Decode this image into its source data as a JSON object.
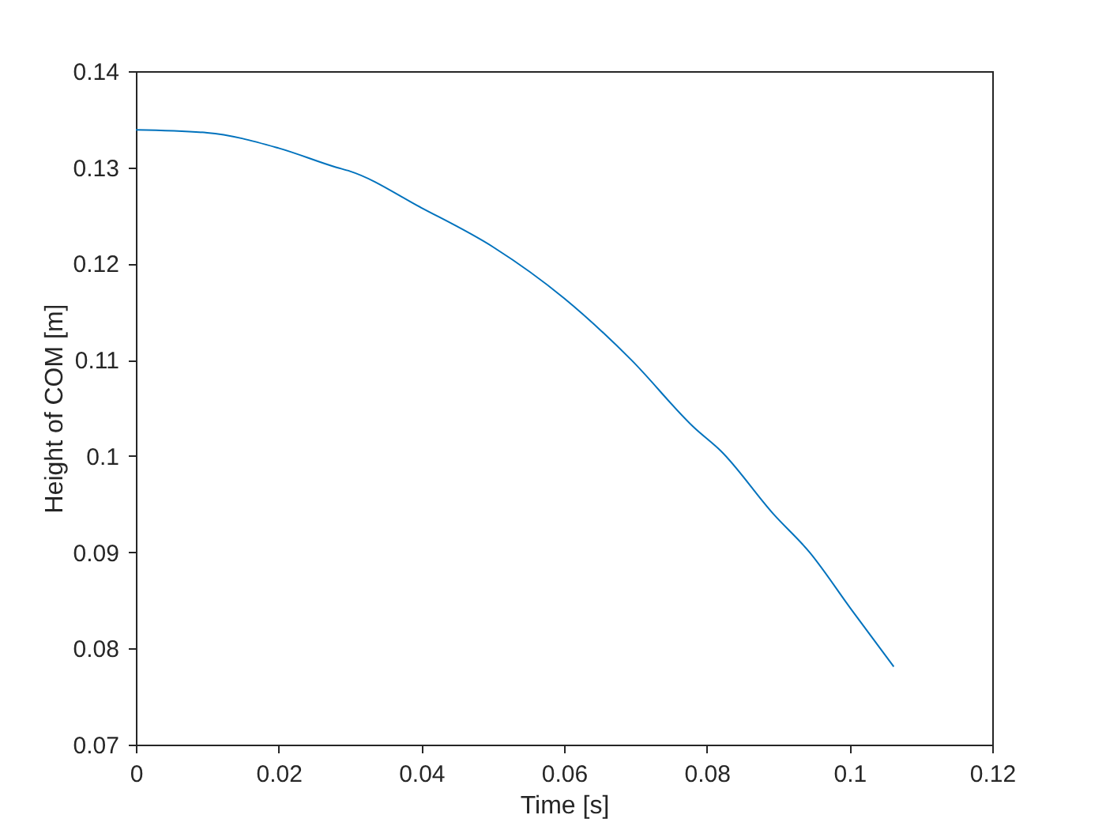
{
  "chart_data": {
    "type": "line",
    "xlabel": "Time [s]",
    "ylabel": "Height of COM [m]",
    "x": [
      0,
      0.01,
      0.02,
      0.0281,
      0.03,
      0.04,
      0.0501,
      0.06,
      0.0694,
      0.0783,
      0.082,
      0.0893,
      0.0944,
      0.1003,
      0.1062
    ],
    "series": [
      {
        "color": "#0072bd",
        "values": [
          0.1339,
          0.1336,
          0.132,
          0.13,
          0.1296,
          0.1258,
          0.1217,
          0.1164,
          0.11,
          0.1029,
          0.1005,
          0.094,
          0.09,
          0.084,
          0.0781
        ]
      }
    ],
    "xlim": [
      0,
      0.12
    ],
    "xticks": [
      0,
      0.02,
      0.04,
      0.06,
      0.08,
      0.1,
      0.12
    ],
    "ylim": [
      0.07,
      0.14
    ],
    "yticks": [
      0.07,
      0.08,
      0.09,
      0.1,
      0.11,
      0.12,
      0.13,
      0.14
    ],
    "grid": false,
    "legend": false,
    "marker": "none",
    "line_style": "solid"
  }
}
